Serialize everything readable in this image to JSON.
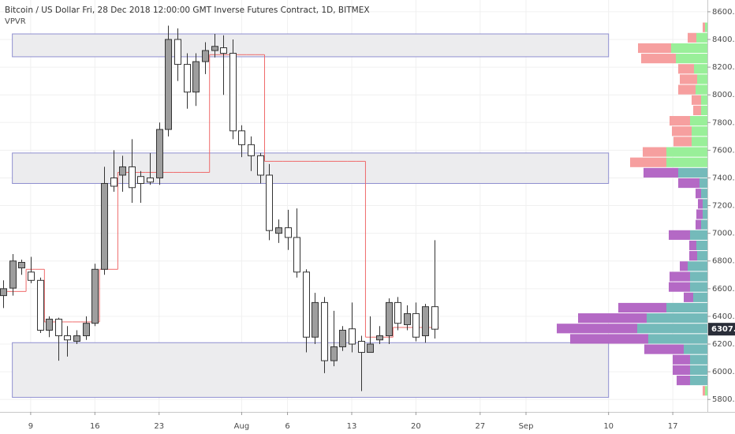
{
  "chart_data": {
    "type": "candlestick",
    "title": "Bitcoin / US Dollar Fri, 28 Dec 2018 12:00:00 GMT Inverse Futures Contract, 1D, BITMEX",
    "indicator_label": "VPVR",
    "x": [
      "Jul 6",
      "Jul 7",
      "Jul 8",
      "Jul 9",
      "Jul 10",
      "Jul 11",
      "Jul 12",
      "Jul 13",
      "Jul 14",
      "Jul 15",
      "Jul 16",
      "Jul 17",
      "Jul 18",
      "Jul 19",
      "Jul 20",
      "Jul 21",
      "Jul 22",
      "Jul 23",
      "Jul 24",
      "Jul 25",
      "Jul 26",
      "Jul 27",
      "Jul 28",
      "Jul 29",
      "Jul 30",
      "Jul 31",
      "Aug 1",
      "Aug 2",
      "Aug 3",
      "Aug 4",
      "Aug 5",
      "Aug 6",
      "Aug 7",
      "Aug 8",
      "Aug 9",
      "Aug 10",
      "Aug 11",
      "Aug 12",
      "Aug 13",
      "Aug 14",
      "Aug 15",
      "Aug 16",
      "Aug 17",
      "Aug 18",
      "Aug 19",
      "Aug 20",
      "Aug 21",
      "Aug 22"
    ],
    "open": [
      6550,
      6604,
      6750,
      6720,
      6660,
      6300,
      6380,
      6260,
      6220,
      6260,
      6350,
      6740,
      7400,
      7420,
      7480,
      7410,
      7400,
      7400,
      7750,
      8400,
      8220,
      8020,
      8240,
      8320,
      8340,
      8300,
      7740,
      7640,
      7560,
      7420,
      7000,
      7040,
      6970,
      6720,
      6250,
      6500,
      6080,
      6180,
      6310,
      6220,
      6140,
      6230,
      6260,
      6500,
      6340,
      6420,
      6260,
      6470
    ],
    "high": [
      6660,
      6850,
      6810,
      6830,
      6680,
      6400,
      6390,
      6330,
      6300,
      6400,
      6780,
      7480,
      7600,
      7560,
      7680,
      7450,
      7580,
      7800,
      8500,
      8480,
      8300,
      8300,
      8380,
      8440,
      8430,
      8400,
      7780,
      7700,
      7580,
      7500,
      7100,
      7170,
      7180,
      6740,
      6570,
      6540,
      6440,
      6330,
      6500,
      6260,
      6400,
      6330,
      6530,
      6540,
      6480,
      6500,
      6490,
      6950
    ],
    "low": [
      6460,
      6550,
      6700,
      6640,
      6280,
      6250,
      6080,
      6110,
      6200,
      6230,
      6330,
      6700,
      7300,
      7300,
      7220,
      7220,
      7350,
      7350,
      7700,
      8100,
      7900,
      7920,
      8150,
      8270,
      8000,
      7680,
      7550,
      7450,
      7360,
      6950,
      6930,
      6880,
      6680,
      6140,
      6200,
      5990,
      6040,
      6150,
      6140,
      5860,
      6140,
      6200,
      6200,
      6300,
      6300,
      6220,
      6210,
      6240
    ],
    "close": [
      6600,
      6800,
      6790,
      6660,
      6300,
      6380,
      6260,
      6230,
      6260,
      6350,
      6740,
      7360,
      7340,
      7480,
      7330,
      7360,
      7370,
      7750,
      8400,
      8220,
      8020,
      8240,
      8320,
      8350,
      8300,
      7740,
      7640,
      7560,
      7420,
      7020,
      7040,
      6970,
      6720,
      6250,
      6500,
      6080,
      6180,
      6300,
      6200,
      6140,
      6200,
      6260,
      6500,
      6350,
      6420,
      6250,
      6470,
      6307.5
    ],
    "up_color": "#9e9e9e",
    "down_color": "#ffffff",
    "step_line": {
      "color": "#ef6a6a",
      "values": [
        6580,
        6580,
        6580,
        6740,
        6740,
        6360,
        6360,
        6360,
        6360,
        6360,
        6360,
        6740,
        6740,
        7440,
        7440,
        7440,
        7440,
        7440,
        7440,
        7440,
        7440,
        7440,
        7440,
        8290,
        8290,
        8290,
        8290,
        8290,
        8290,
        7520,
        7520,
        7520,
        7520,
        7520,
        7520,
        7520,
        7520,
        7520,
        7520,
        7520,
        6250,
        6250,
        6250,
        6320,
        6320,
        6320,
        6320,
        6320
      ]
    },
    "zones": [
      {
        "from": "Jul 7",
        "to": "Sep 10",
        "low": 8275,
        "high": 8440
      },
      {
        "from": "Jul 7",
        "to": "Sep 10",
        "low": 7360,
        "high": 7580
      },
      {
        "from": "Jul 7",
        "to": "Sep 10",
        "low": 5815,
        "high": 6210
      }
    ],
    "zone_color": "#ececee",
    "zone_border": "#8f8fd0",
    "volume_profile": {
      "bins": [
        5825,
        5900,
        5975,
        6050,
        6125,
        6200,
        6275,
        6350,
        6425,
        6500,
        6575,
        6650,
        6725,
        6800,
        6875,
        6950,
        7025,
        7100,
        7175,
        7250,
        7325,
        7400,
        7475,
        7550,
        7625,
        7700,
        7775,
        7850,
        7925,
        8000,
        8075,
        8150,
        8225,
        8300,
        8375,
        8450,
        8525
      ],
      "up": [
        3,
        22,
        22,
        22,
        30,
        75,
        89,
        77,
        52,
        18,
        22,
        22,
        25,
        13,
        14,
        22,
        8,
        6,
        6,
        8,
        10,
        37,
        52,
        52,
        20,
        20,
        22,
        8,
        8,
        15,
        13,
        17,
        40,
        46,
        14,
        3
      ],
      "down": [
        3,
        17,
        22,
        22,
        50,
        99,
        102,
        87,
        61,
        12,
        27,
        26,
        10,
        10,
        9,
        27,
        7,
        8,
        6,
        7,
        27,
        44,
        46,
        30,
        23,
        25,
        26,
        10,
        12,
        22,
        22,
        20,
        44,
        42,
        11,
        3
      ],
      "value_area": [
        5900,
        7475
      ],
      "up_color": "#6db6b6",
      "down_color": "#b061c2",
      "up_color_outside": "#93ee93",
      "down_color_outside": "#f59a9a"
    },
    "last_price": 6307.5,
    "last_price_color": "#2a2e39",
    "xlim": [
      "Jul 6",
      "Sep 20"
    ],
    "xticks": [
      {
        "value": "Jul 9",
        "label": "9"
      },
      {
        "value": "Jul 16",
        "label": "16"
      },
      {
        "value": "Jul 23",
        "label": "23"
      },
      {
        "value": "Aug 1",
        "label": "Aug"
      },
      {
        "value": "Aug 6",
        "label": "6"
      },
      {
        "value": "Aug 13",
        "label": "13"
      },
      {
        "value": "Aug 20",
        "label": "20"
      },
      {
        "value": "Aug 27",
        "label": "27"
      },
      {
        "value": "Sep 1",
        "label": "Sep"
      },
      {
        "value": "Sep 10",
        "label": "10"
      },
      {
        "value": "Sep 17",
        "label": "17"
      }
    ],
    "ylim": [
      5710,
      8685
    ],
    "yticks": [
      {
        "value": 5800,
        "label": "5800.0"
      },
      {
        "value": 6000,
        "label": "6000.0"
      },
      {
        "value": 6200,
        "label": "6200.0"
      },
      {
        "value": 6400,
        "label": "6400.0"
      },
      {
        "value": 6600,
        "label": "6600.0"
      },
      {
        "value": 6800,
        "label": "6800.0"
      },
      {
        "value": 7000,
        "label": "7000.0"
      },
      {
        "value": 7200,
        "label": "7200.0"
      },
      {
        "value": 7400,
        "label": "7400.0"
      },
      {
        "value": 7600,
        "label": "7600.0"
      },
      {
        "value": 7800,
        "label": "7800.0"
      },
      {
        "value": 8000,
        "label": "8000.0"
      },
      {
        "value": 8200,
        "label": "8200.0"
      },
      {
        "value": 8400,
        "label": "8400.0"
      },
      {
        "value": 8600,
        "label": "8600.0"
      }
    ],
    "grid": true
  }
}
